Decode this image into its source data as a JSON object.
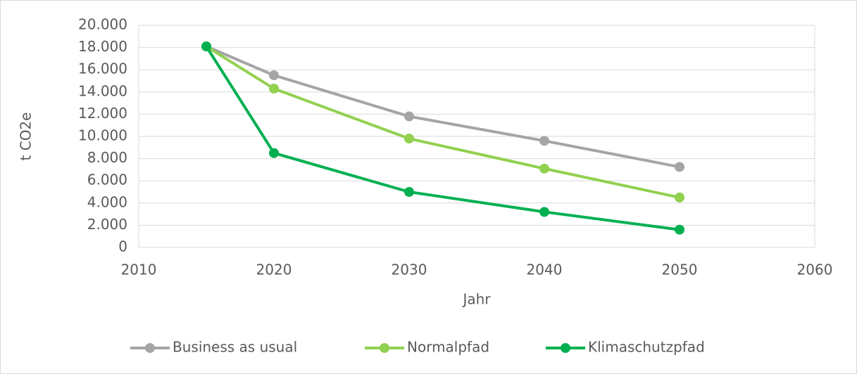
{
  "chart_data": {
    "type": "line",
    "y_label": "t CO2e",
    "x_label": "Jahr",
    "x": [
      2015,
      2020,
      2030,
      2040,
      2050
    ],
    "series": [
      {
        "name": "Business as usual",
        "color": "#a5a5a5",
        "values": [
          18100,
          15500,
          11800,
          9600,
          7250
        ]
      },
      {
        "name": "Normalpfad",
        "color": "#92d050",
        "values": [
          18100,
          14300,
          9800,
          7100,
          4500
        ]
      },
      {
        "name": "Klimaschutzpfad",
        "color": "#00b050",
        "values": [
          18100,
          8500,
          5000,
          3200,
          1600
        ]
      }
    ],
    "xlim": [
      2010,
      2060
    ],
    "xticks": [
      2010,
      2020,
      2030,
      2040,
      2050,
      2060
    ],
    "ylim": [
      0,
      20000
    ],
    "yticks": [
      0,
      {
        "value": 2000,
        "label": "2.000"
      },
      {
        "value": 4000,
        "label": "4.000"
      },
      {
        "value": 6000,
        "label": "6.000"
      },
      {
        "value": 8000,
        "label": "8.000"
      },
      {
        "value": 10000,
        "label": "10.000"
      },
      {
        "value": 12000,
        "label": "12.000"
      },
      {
        "value": 14000,
        "label": "14.000"
      },
      {
        "value": 16000,
        "label": "16.000"
      },
      {
        "value": 18000,
        "label": "18.000"
      },
      {
        "value": 20000,
        "label": "20.000"
      }
    ],
    "grid": true,
    "legend": "bottom"
  }
}
